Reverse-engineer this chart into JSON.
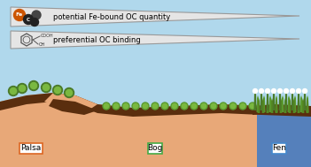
{
  "figsize": [
    3.51,
    1.89
  ],
  "dpi": 100,
  "sky_color": "#b0d8ec",
  "water_left_color": "#c5e0f0",
  "water_right_color": "#5580bb",
  "soil_sandy": "#e8a878",
  "soil_dark": "#5a2e0e",
  "soil_mid": "#c07840",
  "grass_dark": "#4a7a28",
  "grass_light": "#7ab840",
  "grass_mid": "#5a9a30",
  "wedge_fill": "#e5e5e5",
  "wedge_border": "#999999",
  "fe_color": "#cc5500",
  "c_color1": "#222222",
  "c_color2": "#444444",
  "label_palsa": "Palsa",
  "label_bog": "Bog",
  "label_fen": "Fen",
  "label_palsa_box": "#dd6622",
  "label_bog_box": "#44aa44",
  "label_fen_box": "#4488cc",
  "text1": "potential Fe-bound OC quantity",
  "text2": "preferential OC binding",
  "label_fontsize": 6.5,
  "wedge_text_fontsize": 6.0
}
